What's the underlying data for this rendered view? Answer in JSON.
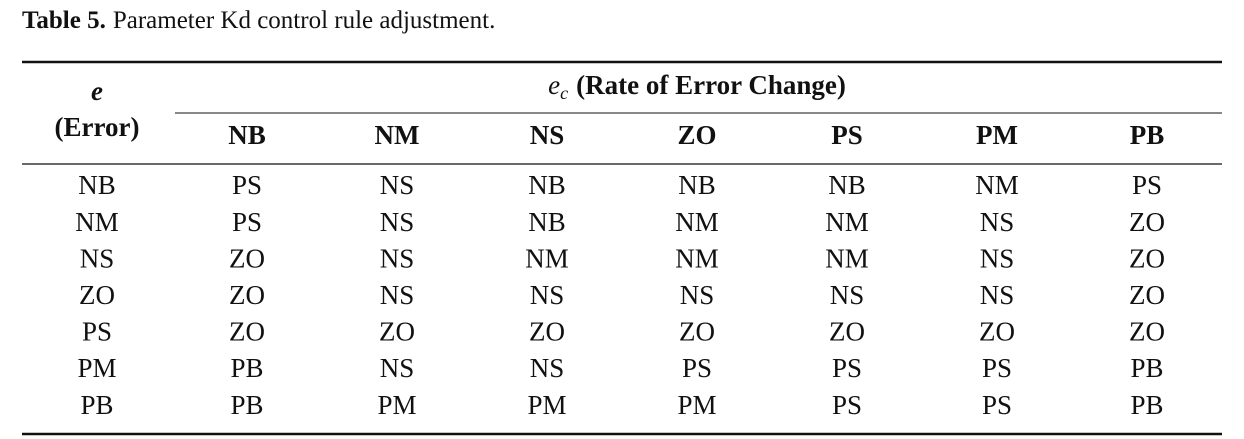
{
  "caption": {
    "label": "Table 5.",
    "text": "Parameter Kd control rule adjustment."
  },
  "table": {
    "row_header": {
      "symbol": "e",
      "text": "(Error)"
    },
    "column_group": {
      "symbol": "e",
      "subscript": "c",
      "text": "(Rate of Error Change)"
    },
    "columns": [
      "NB",
      "NM",
      "NS",
      "ZO",
      "PS",
      "PM",
      "PB"
    ],
    "rows": [
      {
        "label": "NB",
        "cells": [
          "PS",
          "NS",
          "NB",
          "NB",
          "NB",
          "NM",
          "PS"
        ]
      },
      {
        "label": "NM",
        "cells": [
          "PS",
          "NS",
          "NB",
          "NM",
          "NM",
          "NS",
          "ZO"
        ]
      },
      {
        "label": "NS",
        "cells": [
          "ZO",
          "NS",
          "NM",
          "NM",
          "NM",
          "NS",
          "ZO"
        ]
      },
      {
        "label": "ZO",
        "cells": [
          "ZO",
          "NS",
          "NS",
          "NS",
          "NS",
          "NS",
          "ZO"
        ]
      },
      {
        "label": "PS",
        "cells": [
          "ZO",
          "ZO",
          "ZO",
          "ZO",
          "ZO",
          "ZO",
          "ZO"
        ]
      },
      {
        "label": "PM",
        "cells": [
          "PB",
          "NS",
          "NS",
          "PS",
          "PS",
          "PS",
          "PB"
        ]
      },
      {
        "label": "PB",
        "cells": [
          "PB",
          "PM",
          "PM",
          "PM",
          "PS",
          "PS",
          "PB"
        ]
      }
    ]
  }
}
